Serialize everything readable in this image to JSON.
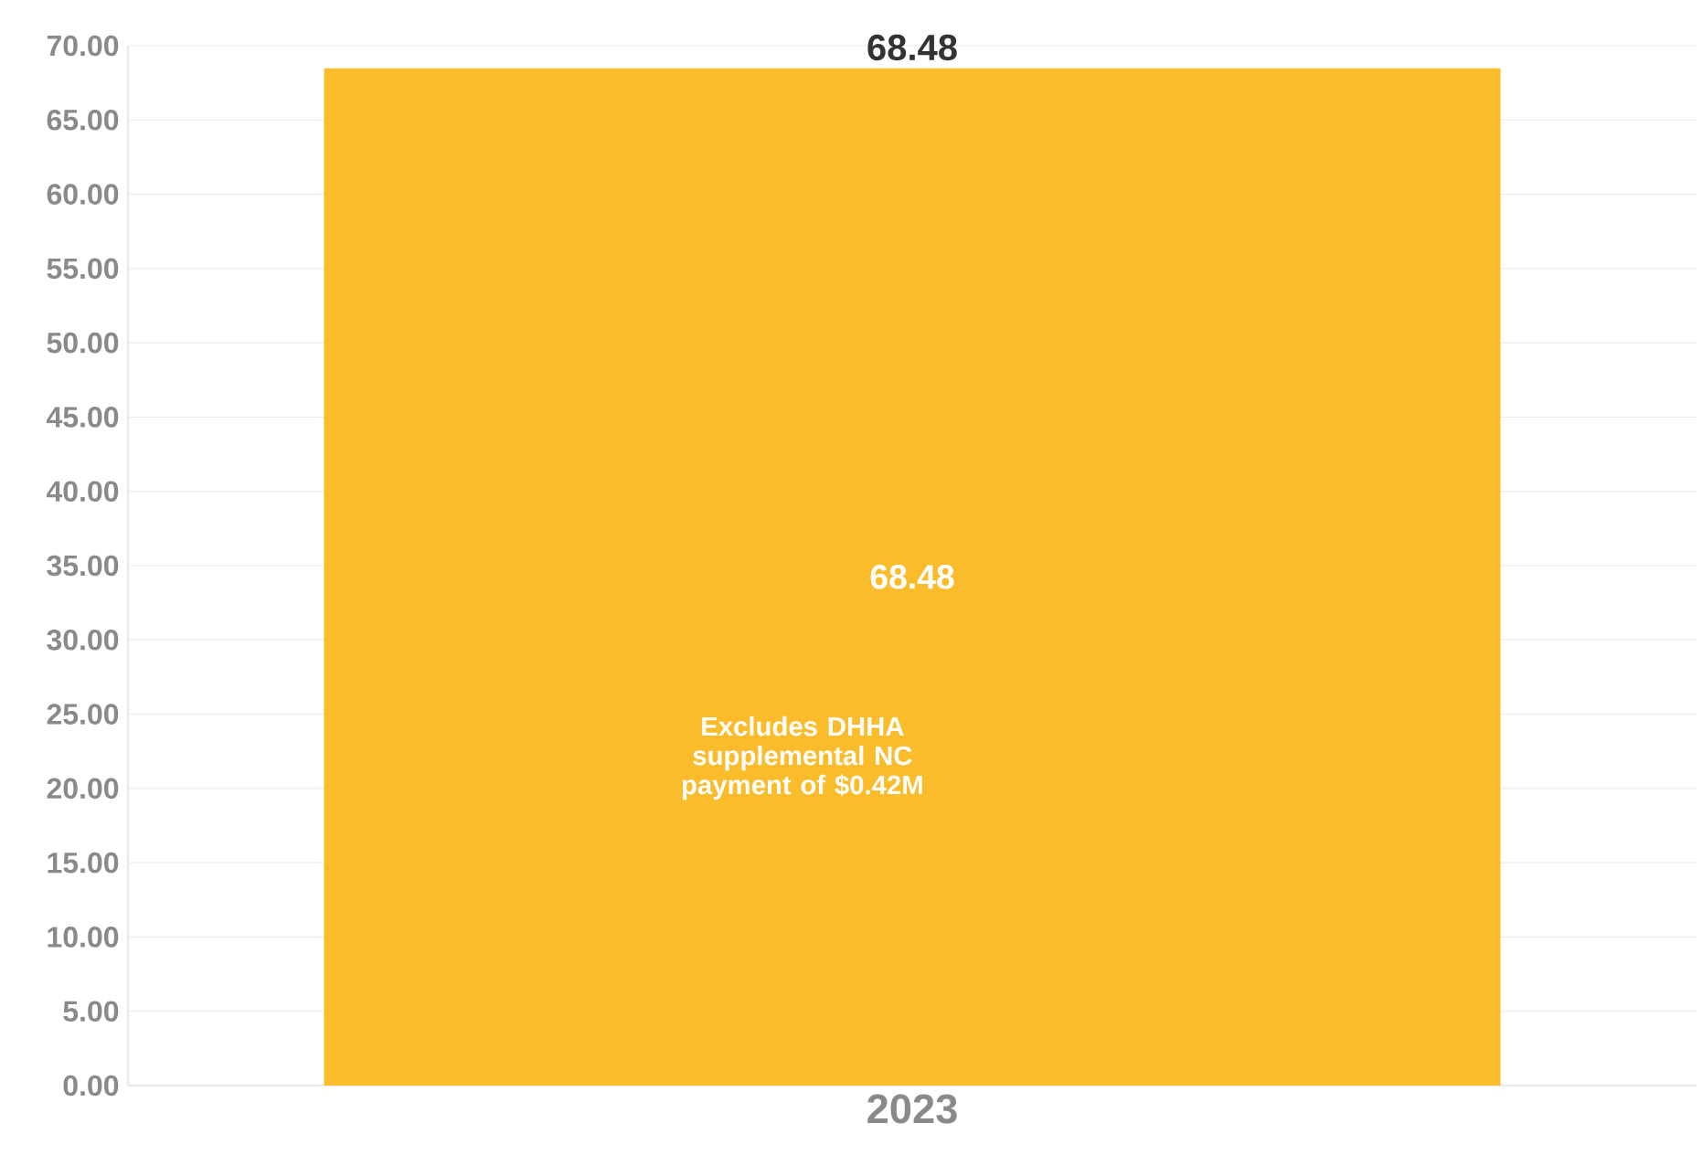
{
  "chart_data": {
    "type": "bar",
    "categories": [
      "2023"
    ],
    "values": [
      68.48
    ],
    "color": "#fbbc2c",
    "ylim": [
      0,
      70
    ],
    "yticks": [
      {
        "value": 0,
        "label": "0.00"
      },
      {
        "value": 5,
        "label": "5.00"
      },
      {
        "value": 10,
        "label": "10.00"
      },
      {
        "value": 15,
        "label": "15.00"
      },
      {
        "value": 20,
        "label": "20.00"
      },
      {
        "value": 25,
        "label": "25.00"
      },
      {
        "value": 30,
        "label": "30.00"
      },
      {
        "value": 35,
        "label": "35.00"
      },
      {
        "value": 40,
        "label": "40.00"
      },
      {
        "value": 45,
        "label": "45.00"
      },
      {
        "value": 50,
        "label": "50.00"
      },
      {
        "value": 55,
        "label": "55.00"
      },
      {
        "value": 60,
        "label": "60.00"
      },
      {
        "value": 65,
        "label": "65.00"
      },
      {
        "value": 70,
        "label": "70.00"
      }
    ],
    "grid": "y",
    "data_labels": true,
    "totals": [
      "68.48"
    ],
    "annotations": [
      "Excludes DHHA supplemental NC payment of $0.42M"
    ]
  }
}
